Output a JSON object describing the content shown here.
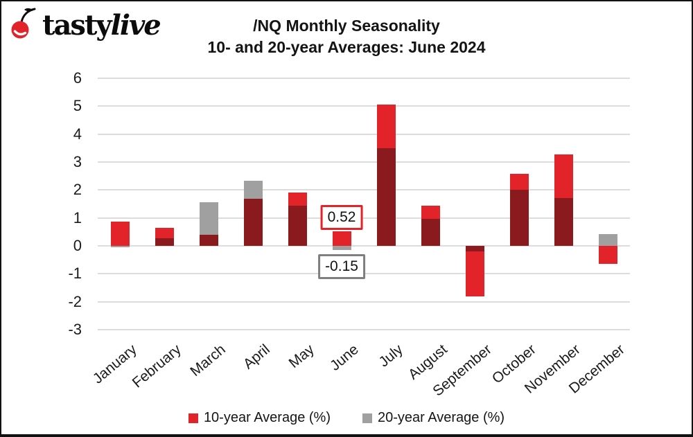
{
  "header": {
    "logo_first": "tasty",
    "logo_second": "live",
    "title_line1": "/NQ Monthly Seasonality",
    "title_line2": "10- and 20-year Averages: June 2024"
  },
  "chart_data": {
    "type": "bar",
    "subtype": "overlapped-bars",
    "title": "/NQ Monthly Seasonality 10- and 20-year Averages: June 2024",
    "categories": [
      "January",
      "February",
      "March",
      "April",
      "May",
      "June",
      "July",
      "August",
      "September",
      "October",
      "November",
      "December"
    ],
    "series": [
      {
        "name": "10-year Average (%)",
        "color": "#e2232a",
        "values": [
          0.87,
          0.65,
          0.4,
          1.68,
          1.92,
          0.52,
          5.07,
          1.44,
          -1.8,
          2.57,
          3.28,
          -0.65
        ]
      },
      {
        "name": "20-year Average (%)",
        "color": "#a0a0a0",
        "values": [
          -0.04,
          0.28,
          1.55,
          2.32,
          1.45,
          -0.15,
          3.5,
          0.97,
          -0.2,
          2.01,
          1.7,
          0.42
        ]
      }
    ],
    "overlap_color": "#8a1a1d",
    "ylim": [
      -3,
      6
    ],
    "yticks": [
      6,
      5,
      4,
      3,
      2,
      1,
      0,
      -1,
      -2,
      -3
    ],
    "grid": true,
    "gridline_color": "#dcdcdc",
    "legend_position": "bottom",
    "annotations": [
      {
        "category": "June",
        "series": "10-year Average (%)",
        "text": "0.52",
        "border_color": "#e2232a"
      },
      {
        "category": "June",
        "series": "20-year Average (%)",
        "text": "-0.15",
        "border_color": "#7f7f7f"
      }
    ]
  },
  "legend": {
    "items": [
      {
        "label": "10-year Average (%)",
        "color": "#e2232a"
      },
      {
        "label": "20-year Average (%)",
        "color": "#a0a0a0"
      }
    ]
  },
  "brand": {
    "cherry_red": "#e2232a",
    "text_black": "#0c0c0c"
  }
}
